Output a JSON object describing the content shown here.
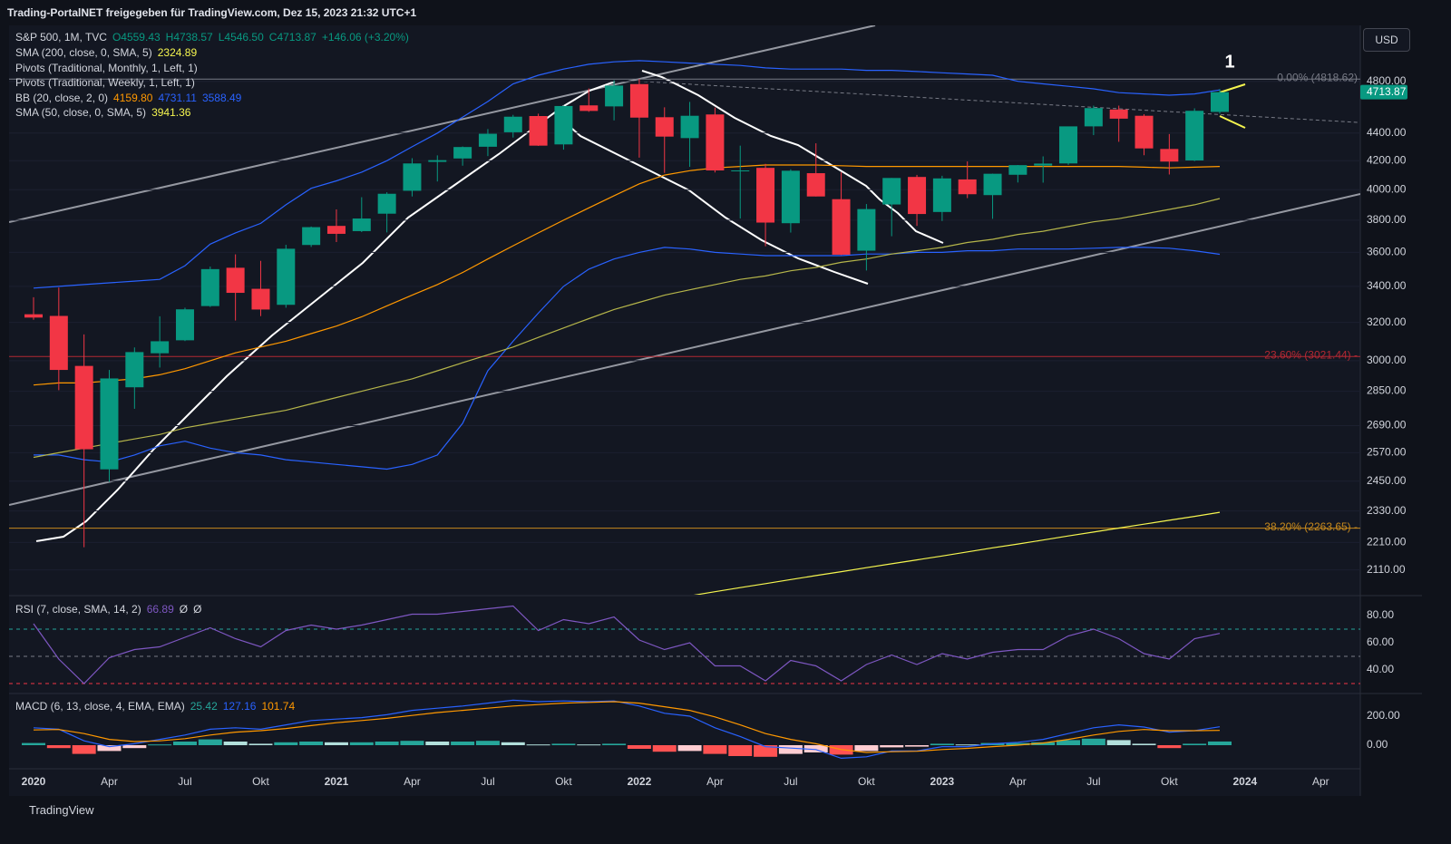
{
  "header": {
    "share": "Trading-PortalNET freigegeben für TradingView.com, Dez 15, 2023 21:32 UTC+1",
    "symbol": "S&P 500, 1M, TVC",
    "ohlc": [
      "O4559.43",
      "H4738.57",
      "L4546.50",
      "C4713.87",
      "+146.06 (+3.20%)"
    ],
    "currency": "USD",
    "brand": "TradingView",
    "marker": "1",
    "indicators": [
      {
        "name": "SMA (200, close, 0, SMA, 5)",
        "values": [
          "2324.89"
        ],
        "colors": [
          "#f5f54f"
        ]
      },
      {
        "name": "Pivots (Traditional, Monthly, 1, Left, 1)",
        "values": [],
        "colors": []
      },
      {
        "name": "Pivots (Traditional, Weekly, 1, Left, 1)",
        "values": [],
        "colors": []
      },
      {
        "name": "BB (20, close, 2, 0)",
        "values": [
          "4159.80",
          "4731.11",
          "3588.49"
        ],
        "colors": [
          "#ff9800",
          "#2962ff",
          "#2962ff"
        ]
      },
      {
        "name": "SMA (50, close, 0, SMA, 5)",
        "values": [
          "3941.36"
        ],
        "colors": [
          "#f5f54f"
        ]
      }
    ],
    "rsi_legend": {
      "name": "RSI (7, close, SMA, 14, 2)",
      "values": [
        "66.89",
        "Ø",
        "Ø"
      ],
      "colors": [
        "#7e57c2",
        "#d1d4dc",
        "#d1d4dc"
      ]
    },
    "macd_legend": {
      "name": "MACD (6, 13, close, 4, EMA, EMA)",
      "values": [
        "25.42",
        "127.16",
        "101.74"
      ],
      "colors": [
        "#26a69a",
        "#2962ff",
        "#ff9800"
      ]
    }
  },
  "chart_data": [
    {
      "type": "candlestick",
      "log_scale": true,
      "grid": true,
      "up_color": "#089981",
      "down_color": "#f23645",
      "x": [
        "2020-01",
        "2020-02",
        "2020-03",
        "2020-04",
        "2020-05",
        "2020-06",
        "2020-07",
        "2020-08",
        "2020-09",
        "2020-10",
        "2020-11",
        "2020-12",
        "2021-01",
        "2021-02",
        "2021-03",
        "2021-04",
        "2021-05",
        "2021-06",
        "2021-07",
        "2021-08",
        "2021-09",
        "2021-10",
        "2021-11",
        "2021-12",
        "2022-01",
        "2022-02",
        "2022-03",
        "2022-04",
        "2022-05",
        "2022-06",
        "2022-07",
        "2022-08",
        "2022-09",
        "2022-10",
        "2022-11",
        "2022-12",
        "2023-01",
        "2023-02",
        "2023-03",
        "2023-04",
        "2023-05",
        "2023-06",
        "2023-07",
        "2023-08",
        "2023-09",
        "2023-10",
        "2023-11",
        "2023-12"
      ],
      "open": [
        3244,
        3235,
        2974,
        2499,
        2869,
        3038,
        3105,
        3289,
        3508,
        3386,
        3296,
        3645,
        3764,
        3731,
        3842,
        3993,
        4192,
        4216,
        4300,
        4406,
        4528,
        4317,
        4610,
        4602,
        4778,
        4519,
        4363,
        4540,
        4130,
        4150,
        3781,
        4113,
        3937,
        3610,
        3902,
        4087,
        3853,
        4070,
        3964,
        4102,
        4166,
        4181,
        4450,
        4578,
        4530,
        4284,
        4202,
        4559.43
      ],
      "high": [
        3338,
        3393,
        3136,
        2954,
        3068,
        3233,
        3280,
        3515,
        3588,
        3549,
        3646,
        3760,
        3870,
        3950,
        3983,
        4218,
        4238,
        4302,
        4430,
        4537,
        4546,
        4608,
        4743,
        4809,
        4819,
        4595,
        4637,
        4593,
        4308,
        4178,
        4140,
        4325,
        4120,
        3905,
        4080,
        4101,
        4095,
        4195,
        4110,
        4170,
        4231,
        4449,
        4608,
        4608,
        4542,
        4393,
        4587,
        4738.57
      ],
      "low": [
        3214,
        2855,
        2192,
        2447,
        2767,
        2966,
        3101,
        3284,
        3210,
        3234,
        3280,
        3633,
        3663,
        3725,
        3723,
        3955,
        4056,
        4165,
        4233,
        4367,
        4306,
        4279,
        4560,
        4495,
        4222,
        4115,
        4157,
        4118,
        3811,
        3637,
        3722,
        3955,
        3584,
        3492,
        3699,
        3764,
        3795,
        3944,
        3809,
        4049,
        4048,
        4171,
        4385,
        4336,
        4239,
        4104,
        4197,
        4546.5
      ],
      "close": [
        3226,
        2954,
        2585,
        2912,
        3044,
        3100,
        3271,
        3500,
        3363,
        3270,
        3622,
        3756,
        3714,
        3811,
        3973,
        4181,
        4204,
        4298,
        4395,
        4523,
        4308,
        4605,
        4567,
        4766,
        4516,
        4374,
        4530,
        4132,
        4132,
        3785,
        4130,
        3955,
        3586,
        3872,
        4080,
        3840,
        4077,
        3970,
        4109,
        4169,
        4180,
        4450,
        4589,
        4508,
        4288,
        4194,
        4568,
        4713.87
      ],
      "series": [
        {
          "color": "#2962ff",
          "values": [
            3390,
            3400,
            3410,
            3420,
            3430,
            3440,
            3520,
            3650,
            3720,
            3780,
            3900,
            4010,
            4060,
            4120,
            4200,
            4300,
            4400,
            4520,
            4640,
            4780,
            4850,
            4900,
            4940,
            4960,
            4970,
            4960,
            4950,
            4940,
            4930,
            4910,
            4900,
            4900,
            4900,
            4890,
            4890,
            4880,
            4870,
            4860,
            4850,
            4800,
            4780,
            4760,
            4740,
            4710,
            4700,
            4690,
            4700,
            4731.11
          ]
        },
        {
          "color": "#ff9800",
          "values": [
            2880,
            2890,
            2890,
            2900,
            2910,
            2930,
            2960,
            3000,
            3040,
            3070,
            3100,
            3140,
            3180,
            3230,
            3290,
            3350,
            3410,
            3480,
            3560,
            3640,
            3720,
            3800,
            3880,
            3960,
            4040,
            4100,
            4130,
            4150,
            4160,
            4170,
            4170,
            4170,
            4165,
            4160,
            4160,
            4160,
            4160,
            4160,
            4160,
            4160,
            4160,
            4160,
            4160,
            4160,
            4155,
            4150,
            4155,
            4159.8
          ]
        },
        {
          "color": "#2962ff",
          "values": [
            2560,
            2560,
            2540,
            2530,
            2560,
            2600,
            2620,
            2590,
            2570,
            2560,
            2540,
            2530,
            2520,
            2510,
            2500,
            2520,
            2560,
            2700,
            2950,
            3100,
            3250,
            3400,
            3500,
            3560,
            3600,
            3630,
            3620,
            3600,
            3590,
            3580,
            3580,
            3580,
            3580,
            3590,
            3590,
            3600,
            3600,
            3610,
            3610,
            3620,
            3620,
            3620,
            3625,
            3630,
            3630,
            3625,
            3610,
            3588.49
          ]
        },
        {
          "color": "#b5b54a",
          "values": [
            2550,
            2570,
            2590,
            2610,
            2630,
            2650,
            2680,
            2700,
            2720,
            2740,
            2760,
            2790,
            2820,
            2850,
            2880,
            2910,
            2950,
            2990,
            3030,
            3070,
            3120,
            3170,
            3220,
            3270,
            3310,
            3350,
            3380,
            3410,
            3440,
            3460,
            3490,
            3510,
            3540,
            3560,
            3590,
            3610,
            3630,
            3660,
            3680,
            3710,
            3730,
            3760,
            3790,
            3810,
            3840,
            3870,
            3900,
            3941.36
          ]
        },
        {
          "color": "#f5f54f",
          "values": [
            null,
            null,
            null,
            null,
            null,
            null,
            null,
            null,
            null,
            null,
            null,
            null,
            null,
            null,
            null,
            null,
            null,
            null,
            null,
            null,
            null,
            null,
            null,
            null,
            null,
            null,
            2020,
            2034,
            2048,
            2062,
            2076,
            2090,
            2104,
            2118,
            2132,
            2146,
            2160,
            2175,
            2190,
            2204,
            2219,
            2234,
            2249,
            2264,
            2279,
            2294,
            2309,
            2324.89
          ]
        }
      ],
      "levels": [
        {
          "value": 4818.62,
          "label": "0.00% (4818.62)",
          "color": "#787b86"
        },
        {
          "value": 3021.44,
          "label": "23.60% (3021.44) -",
          "color": "#b22833"
        },
        {
          "value": 2263.65,
          "label": "38.20% (2263.65) -",
          "color": "#c6891d"
        }
      ],
      "ylim": [
        2027,
        5274
      ],
      "yticks": [
        {
          "value": 4800,
          "label": "4800.00"
        },
        {
          "value": 4400,
          "label": "4400.00"
        },
        {
          "value": 4200,
          "label": "4200.00"
        },
        {
          "value": 4000,
          "label": "4000.00"
        },
        {
          "value": 3800,
          "label": "3800.00"
        },
        {
          "value": 3600,
          "label": "3600.00"
        },
        {
          "value": 3400,
          "label": "3400.00"
        },
        {
          "value": 3200,
          "label": "3200.00"
        },
        {
          "value": 3000,
          "label": "3000.00"
        },
        {
          "value": 2850,
          "label": "2850.00"
        },
        {
          "value": 2690,
          "label": "2690.00"
        },
        {
          "value": 2570,
          "label": "2570.00"
        },
        {
          "value": 2450,
          "label": "2450.00"
        },
        {
          "value": 2330,
          "label": "2330.00"
        },
        {
          "value": 2210,
          "label": "2210.00"
        },
        {
          "value": 2110,
          "label": "2110.00"
        }
      ],
      "xticks": [
        {
          "value": "2020-01",
          "label": "2020"
        },
        {
          "value": "2020-04",
          "label": "Apr"
        },
        {
          "value": "2020-07",
          "label": "Jul"
        },
        {
          "value": "2020-10",
          "label": "Okt"
        },
        {
          "value": "2021-01",
          "label": "2021"
        },
        {
          "value": "2021-04",
          "label": "Apr"
        },
        {
          "value": "2021-07",
          "label": "Jul"
        },
        {
          "value": "2021-10",
          "label": "Okt"
        },
        {
          "value": "2022-01",
          "label": "2022"
        },
        {
          "value": "2022-04",
          "label": "Apr"
        },
        {
          "value": "2022-07",
          "label": "Jul"
        },
        {
          "value": "2022-10",
          "label": "Okt"
        },
        {
          "value": "2023-01",
          "label": "2023"
        },
        {
          "value": "2023-04",
          "label": "Apr"
        },
        {
          "value": "2023-07",
          "label": "Jul"
        },
        {
          "value": "2023-10",
          "label": "Okt"
        },
        {
          "value": "2024-01",
          "label": "2024"
        },
        {
          "value": "2024-04",
          "label": "Apr"
        }
      ]
    },
    {
      "type": "line",
      "color": "#7e57c2",
      "values": [
        74,
        48,
        30,
        49,
        55,
        57,
        64,
        71,
        63,
        57,
        69,
        73,
        70,
        73,
        77,
        81,
        81,
        83,
        85,
        87,
        69,
        77,
        74,
        79,
        62,
        55,
        60,
        43,
        43,
        32,
        47,
        43,
        32,
        44,
        51,
        44,
        52,
        48,
        53,
        55,
        55,
        65,
        70,
        63,
        52,
        48,
        63,
        66.89
      ],
      "levels": [
        {
          "value": 70,
          "color": "#26a69a"
        },
        {
          "value": 50,
          "color": "#787b86"
        },
        {
          "value": 30,
          "color": "#f23645"
        }
      ],
      "ylim": [
        22.7,
        92.7
      ],
      "yticks": [
        {
          "value": 80,
          "label": "80.00"
        },
        {
          "value": 60,
          "label": "60.00"
        },
        {
          "value": 40,
          "label": "40.00"
        }
      ]
    },
    {
      "type": "macd",
      "histogram": [
        15,
        -20,
        -60,
        -40,
        -20,
        5,
        25,
        40,
        25,
        10,
        20,
        25,
        20,
        20,
        25,
        30,
        25,
        25,
        30,
        20,
        5,
        10,
        5,
        10,
        -25,
        -45,
        -40,
        -60,
        -75,
        -80,
        -60,
        -50,
        -65,
        -40,
        -15,
        -10,
        10,
        5,
        15,
        15,
        20,
        35,
        45,
        35,
        10,
        -20,
        10,
        25.42
      ],
      "macd": {
        "color": "#2962ff",
        "values": [
          120,
          110,
          30,
          -10,
          10,
          40,
          70,
          110,
          120,
          110,
          140,
          170,
          180,
          190,
          210,
          240,
          255,
          270,
          290,
          310,
          300,
          305,
          300,
          305,
          270,
          220,
          200,
          120,
          60,
          -10,
          -20,
          -30,
          -90,
          -80,
          -40,
          -40,
          -10,
          -10,
          10,
          20,
          40,
          80,
          120,
          140,
          125,
          90,
          100,
          127.16
        ]
      },
      "signal": {
        "color": "#ff9800",
        "values": [
          105,
          108,
          80,
          40,
          25,
          30,
          45,
          70,
          90,
          100,
          115,
          135,
          155,
          170,
          185,
          205,
          225,
          240,
          255,
          270,
          280,
          290,
          295,
          300,
          290,
          265,
          240,
          195,
          140,
          80,
          40,
          10,
          -30,
          -50,
          -45,
          -42,
          -30,
          -22,
          -10,
          0,
          15,
          40,
          70,
          95,
          108,
          100,
          100,
          101.74
        ]
      },
      "ylim": [
        -162.5,
        325
      ],
      "yticks": [
        {
          "value": 200,
          "label": "200.00"
        },
        {
          "value": 0,
          "label": "0.00"
        }
      ]
    }
  ]
}
